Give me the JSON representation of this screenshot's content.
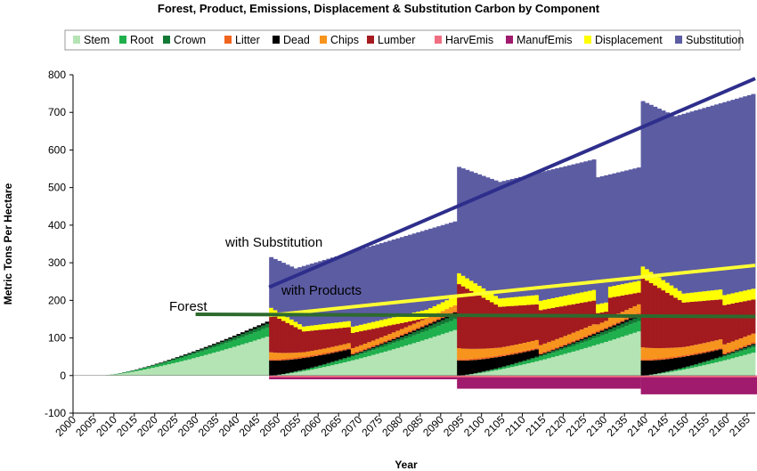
{
  "chart_data": {
    "type": "area",
    "title": "Forest, Product, Emissions, Displacement & Substitution Carbon by Component",
    "xlabel": "Year",
    "ylabel": "Metric Tons Per Hectare",
    "xlim": [
      2000,
      2167
    ],
    "ylim": [
      -100,
      800
    ],
    "y_ticks": [
      -100,
      0,
      100,
      200,
      300,
      400,
      500,
      600,
      700,
      800
    ],
    "x_ticks": [
      "2000",
      "2005",
      "2010",
      "2015",
      "2020",
      "2025",
      "2030",
      "2035",
      "2040",
      "2045",
      "2050",
      "2055",
      "2060",
      "2065",
      "2070",
      "2075",
      "2080",
      "2085",
      "2090",
      "2095",
      "2100",
      "2105",
      "2110",
      "2115",
      "2120",
      "2125",
      "2130",
      "2135",
      "2140",
      "2145",
      "2150",
      "2155",
      "2160",
      "2165"
    ],
    "grid": false,
    "legend_position": "top",
    "components": [
      {
        "name": "Stem",
        "color": "#b4e4b4"
      },
      {
        "name": "Root",
        "color": "#1fb04d"
      },
      {
        "name": "Crown",
        "color": "#137a35"
      },
      {
        "name": "Litter",
        "color": "#f0641e"
      },
      {
        "name": "Dead",
        "color": "#000000"
      },
      {
        "name": "Chips",
        "color": "#f7941d"
      },
      {
        "name": "Lumber",
        "color": "#a31a1f"
      },
      {
        "name": "HarvEmis",
        "color": "#f06e82"
      },
      {
        "name": "ManufEmis",
        "color": "#a01a6e"
      },
      {
        "name": "Displacement",
        "color": "#ffff00"
      },
      {
        "name": "Substitution",
        "color": "#5c5ca3"
      }
    ],
    "harvest_years": [
      2048,
      2094,
      2139
    ],
    "stacked_envelope": {
      "note_x": [
        2007,
        2047,
        2048,
        2054,
        2060,
        2093,
        2094,
        2105,
        2127,
        2128,
        2136,
        2139,
        2150,
        2167
      ],
      "forest_top": [
        0,
        168,
        5,
        8,
        20,
        168,
        5,
        10,
        120,
        125,
        150,
        5,
        30,
        115
      ],
      "products_top": [
        0,
        0,
        148,
        110,
        115,
        230,
        240,
        185,
        255,
        195,
        250,
        258,
        195,
        260
      ],
      "total_top": [
        0,
        0,
        315,
        285,
        290,
        410,
        555,
        515,
        595,
        545,
        585,
        730,
        690,
        755
      ]
    },
    "emissions": [
      {
        "from": 2048,
        "to": 2093,
        "value": -10
      },
      {
        "from": 2094,
        "to": 2138,
        "value": -35
      },
      {
        "from": 2139,
        "to": 2167,
        "value": -50
      }
    ],
    "trend_lines": [
      {
        "label": "with Substitution",
        "color": "#2e2e8c",
        "x": [
          2048,
          2167
        ],
        "y": [
          235,
          790
        ]
      },
      {
        "label": "with Products",
        "color": "#ffff33",
        "x": [
          2048,
          2167
        ],
        "y": [
          160,
          293
        ]
      },
      {
        "label": "Forest",
        "color": "#2d6a2d",
        "x": [
          2030,
          2167
        ],
        "y": [
          163,
          157
        ]
      }
    ]
  }
}
